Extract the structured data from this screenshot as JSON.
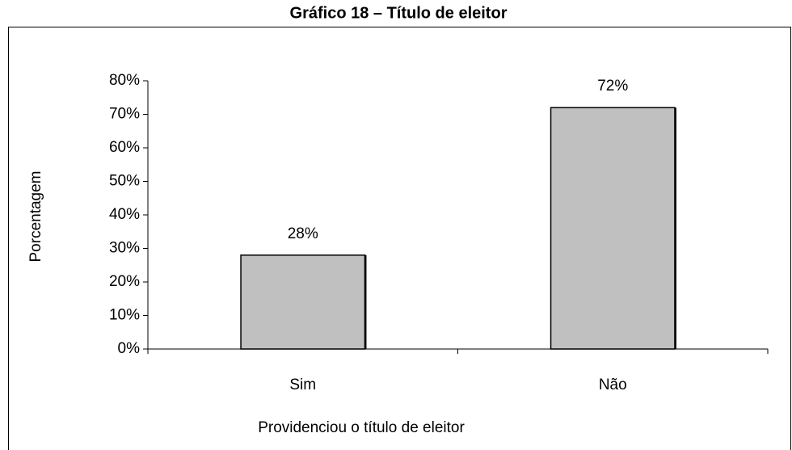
{
  "chart_data": {
    "type": "bar",
    "title": "Gráfico 18 – Título de eleitor",
    "categories": [
      "Sim",
      "Não"
    ],
    "values": [
      28,
      72
    ],
    "value_labels": [
      "28%",
      "72%"
    ],
    "color": "#c0c0c0",
    "xlabel": "Providenciou o título de eleitor",
    "ylabel": "Porcentagem",
    "ylim": [
      0,
      80
    ],
    "yticks": [
      {
        "value": 0,
        "label": "0%"
      },
      {
        "value": 10,
        "label": "10%"
      },
      {
        "value": 20,
        "label": "20%"
      },
      {
        "value": 30,
        "label": "30%"
      },
      {
        "value": 40,
        "label": "40%"
      },
      {
        "value": 50,
        "label": "50%"
      },
      {
        "value": 60,
        "label": "60%"
      },
      {
        "value": 70,
        "label": "70%"
      },
      {
        "value": 80,
        "label": "80%"
      }
    ],
    "grid": false
  }
}
